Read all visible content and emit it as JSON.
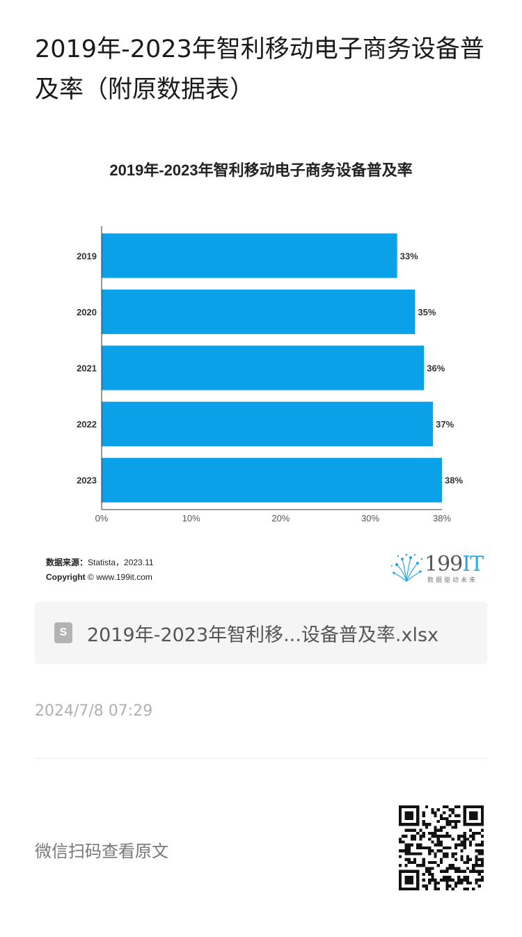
{
  "page": {
    "title": "2019年-2023年智利移动电子商务设备普及率（附原数据表）"
  },
  "chart": {
    "source_label": "数据来源：",
    "source_value": "Statista，2023.11",
    "copyright_label": "Copyright",
    "copyright_value": "© www.199it.com",
    "logo_main": "199",
    "logo_accent": "IT",
    "logo_sub": "数据驱动未来"
  },
  "chart_data": {
    "type": "bar",
    "orientation": "horizontal",
    "title": "2019年-2023年智利移动电子商务设备普及率",
    "categories": [
      "2019",
      "2020",
      "2021",
      "2022",
      "2023"
    ],
    "values": [
      33,
      35,
      36,
      37,
      38
    ],
    "data_labels": [
      "33%",
      "35%",
      "36%",
      "37%",
      "38%"
    ],
    "x_ticks": [
      "0%",
      "10%",
      "20%",
      "30%",
      "38%"
    ],
    "x_tick_values": [
      0,
      10,
      20,
      30,
      38
    ],
    "xlim": [
      0,
      38
    ],
    "xlabel": "",
    "ylabel": "",
    "grid": false,
    "bar_color": "#0aa1e8"
  },
  "attachment": {
    "file_name": "2019年-2023年智利移...设备普及率.xlsx",
    "icon": "spreadsheet-file-icon",
    "icon_letter": "S"
  },
  "meta": {
    "timestamp": "2024/7/8 07:29",
    "scan_text": "微信扫码查看原文"
  }
}
